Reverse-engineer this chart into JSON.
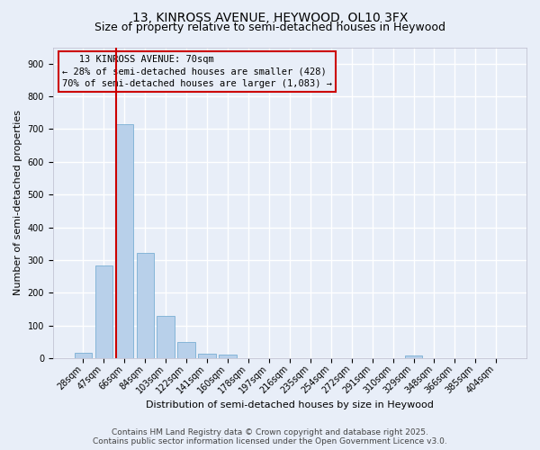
{
  "title_line1": "13, KINROSS AVENUE, HEYWOOD, OL10 3FX",
  "title_line2": "Size of property relative to semi-detached houses in Heywood",
  "xlabel": "Distribution of semi-detached houses by size in Heywood",
  "ylabel": "Number of semi-detached properties",
  "categories": [
    "28sqm",
    "47sqm",
    "66sqm",
    "84sqm",
    "103sqm",
    "122sqm",
    "141sqm",
    "160sqm",
    "178sqm",
    "197sqm",
    "216sqm",
    "235sqm",
    "254sqm",
    "272sqm",
    "291sqm",
    "310sqm",
    "329sqm",
    "348sqm",
    "366sqm",
    "385sqm",
    "404sqm"
  ],
  "values": [
    18,
    283,
    715,
    322,
    130,
    50,
    14,
    12,
    0,
    0,
    0,
    0,
    0,
    0,
    0,
    0,
    8,
    0,
    0,
    0,
    0
  ],
  "bar_color": "#b8d0ea",
  "bar_edgecolor": "#7aafd4",
  "vline_color": "#cc0000",
  "vline_x_index": 1.6,
  "annotation_text_line1": "   13 KINROSS AVENUE: 70sqm",
  "annotation_text_line2": "← 28% of semi-detached houses are smaller (428)",
  "annotation_text_line3": "70% of semi-detached houses are larger (1,083) →",
  "annotation_box_edgecolor": "#cc0000",
  "ylim": [
    0,
    950
  ],
  "yticks": [
    0,
    100,
    200,
    300,
    400,
    500,
    600,
    700,
    800,
    900
  ],
  "background_color": "#e8eef8",
  "grid_color": "#ffffff",
  "footer_line1": "Contains HM Land Registry data © Crown copyright and database right 2025.",
  "footer_line2": "Contains public sector information licensed under the Open Government Licence v3.0.",
  "title_fontsize": 10,
  "subtitle_fontsize": 9,
  "axis_label_fontsize": 8,
  "tick_fontsize": 7,
  "annotation_fontsize": 7.5,
  "footer_fontsize": 6.5
}
